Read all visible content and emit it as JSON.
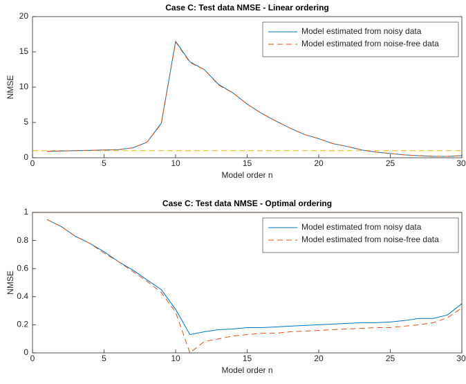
{
  "chart_data": [
    {
      "type": "line",
      "title": "Case C: Test data NMSE - Linear ordering",
      "xlabel": "Model order n",
      "ylabel": "NMSE",
      "x": [
        1,
        2,
        3,
        4,
        5,
        6,
        7,
        8,
        9,
        10,
        11,
        12,
        13,
        14,
        15,
        16,
        17,
        18,
        19,
        20,
        21,
        22,
        23,
        24,
        25,
        26,
        27,
        28,
        29,
        30
      ],
      "series": [
        {
          "name": "Model estimated from noisy data",
          "color": "#0072bd",
          "dash": false,
          "values": [
            0.9,
            0.95,
            1.0,
            1.05,
            1.1,
            1.15,
            1.4,
            2.2,
            4.9,
            16.5,
            13.6,
            12.5,
            10.4,
            9.2,
            7.6,
            6.3,
            5.2,
            4.2,
            3.3,
            2.7,
            2.0,
            1.6,
            1.1,
            0.8,
            0.6,
            0.4,
            0.3,
            0.2,
            0.2,
            0.3
          ]
        },
        {
          "name": "Model estimated from noise-free data",
          "color": "#d95319",
          "dash": true,
          "values": [
            0.9,
            0.95,
            1.0,
            1.05,
            1.1,
            1.15,
            1.4,
            2.2,
            4.8,
            16.4,
            13.5,
            12.5,
            10.3,
            9.2,
            7.6,
            6.3,
            5.2,
            4.2,
            3.3,
            2.7,
            2.0,
            1.6,
            1.1,
            0.8,
            0.6,
            0.4,
            0.3,
            0.2,
            0.2,
            0.3
          ]
        }
      ],
      "hline": {
        "value": 1,
        "color": "#edb120",
        "dash": true
      },
      "xlim": [
        0,
        30
      ],
      "ylim": [
        0,
        20
      ],
      "xticks": [
        0,
        5,
        10,
        15,
        20,
        25,
        30
      ],
      "yticks": [
        0,
        5,
        10,
        15,
        20
      ],
      "legend": "upper right"
    },
    {
      "type": "line",
      "title": "Case C: Test data NMSE - Optimal ordering",
      "xlabel": "Model order n",
      "ylabel": "NMSE",
      "x": [
        1,
        2,
        3,
        4,
        5,
        6,
        7,
        8,
        9,
        10,
        11,
        12,
        13,
        14,
        15,
        16,
        17,
        18,
        19,
        20,
        21,
        22,
        23,
        24,
        25,
        26,
        27,
        28,
        29,
        30
      ],
      "series": [
        {
          "name": "Model estimated from noisy data",
          "color": "#0072bd",
          "dash": false,
          "values": [
            0.95,
            0.9,
            0.83,
            0.78,
            0.72,
            0.65,
            0.59,
            0.52,
            0.45,
            0.31,
            0.13,
            0.15,
            0.165,
            0.17,
            0.18,
            0.18,
            0.185,
            0.19,
            0.195,
            0.2,
            0.205,
            0.21,
            0.215,
            0.215,
            0.22,
            0.23,
            0.245,
            0.245,
            0.27,
            0.35
          ]
        },
        {
          "name": "Model estimated from noise-free data",
          "color": "#d95319",
          "dash": true,
          "values": [
            0.95,
            0.9,
            0.83,
            0.78,
            0.71,
            0.65,
            0.58,
            0.51,
            0.43,
            0.29,
            0.0,
            0.08,
            0.1,
            0.12,
            0.13,
            0.14,
            0.14,
            0.15,
            0.155,
            0.16,
            0.165,
            0.17,
            0.175,
            0.18,
            0.18,
            0.19,
            0.2,
            0.215,
            0.25,
            0.32
          ]
        }
      ],
      "hline": {
        "value": 1,
        "color": "#d95319",
        "dash": false
      },
      "xlim": [
        0,
        30
      ],
      "ylim": [
        0,
        1
      ],
      "xticks": [
        0,
        5,
        10,
        15,
        20,
        25,
        30
      ],
      "yticks": [
        0,
        0.2,
        0.4,
        0.6,
        0.8,
        1
      ],
      "legend": "upper right"
    }
  ]
}
